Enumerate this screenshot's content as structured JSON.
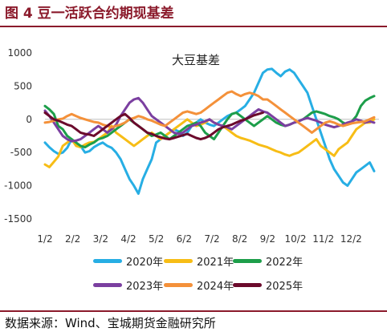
{
  "figure_title": "图 4 豆一活跃合约期现基差",
  "source_note": "数据来源：Wind、宝城期货金融研究所",
  "chart_data": {
    "type": "line",
    "title": "大豆基差",
    "xlabel": "",
    "ylabel": "",
    "ylim": [
      -1500,
      1000
    ],
    "yticks": [
      1000,
      500,
      0,
      -500,
      -1000,
      -1500
    ],
    "x_tick_labels": [
      "1/2",
      "2/2",
      "3/2",
      "4/2",
      "5/2",
      "6/2",
      "7/2",
      "8/2",
      "9/2",
      "10/2",
      "11/2",
      "12/2"
    ],
    "legend_position": "bottom",
    "grid": false,
    "series": [
      {
        "name": "2020年",
        "color": "#27aee4",
        "values": [
          -350,
          -420,
          -480,
          -520,
          -500,
          -430,
          -300,
          -360,
          -400,
          -500,
          -480,
          -420,
          -380,
          -350,
          -400,
          -430,
          -500,
          -600,
          -750,
          -900,
          -1000,
          -1120,
          -900,
          -750,
          -600,
          -350,
          -300,
          -250,
          -200,
          -150,
          -180,
          -250,
          -200,
          -100,
          -50,
          0,
          -50,
          -80,
          -100,
          -50,
          0,
          50,
          80,
          100,
          150,
          200,
          300,
          400,
          550,
          700,
          750,
          760,
          700,
          650,
          720,
          750,
          700,
          600,
          500,
          400,
          200,
          0,
          -200,
          -400,
          -600,
          -750,
          -850,
          -950,
          -1000,
          -900,
          -800,
          -750,
          -700,
          -650,
          -780
        ]
      },
      {
        "name": "2021年",
        "color": "#f7bd16",
        "values": [
          -680,
          -720,
          -640,
          -560,
          -400,
          -350,
          -300,
          -400,
          -420,
          -380,
          -350,
          -340,
          -300,
          -250,
          -200,
          -100,
          -200,
          -250,
          -300,
          -350,
          -400,
          -350,
          -300,
          -250,
          -200,
          -250,
          -300,
          -250,
          -200,
          -150,
          -100,
          -50,
          0,
          -50,
          -100,
          -80,
          -50,
          0,
          -50,
          -80,
          -100,
          -150,
          -200,
          -250,
          -280,
          -300,
          -320,
          -350,
          -380,
          -400,
          -420,
          -450,
          -480,
          -500,
          -530,
          -550,
          -520,
          -500,
          -450,
          -400,
          -350,
          -300,
          -400,
          -450,
          -500,
          -550,
          -450,
          -400,
          -350,
          -250,
          -150,
          -100,
          -50,
          -50,
          0
        ]
      },
      {
        "name": "2022年",
        "color": "#1d9e4a",
        "values": [
          200,
          150,
          80,
          -100,
          -150,
          -250,
          -300,
          -350,
          -400,
          -420,
          -380,
          -350,
          -300,
          -280,
          -250,
          -200,
          -150,
          -100,
          -50,
          0,
          -50,
          -100,
          -150,
          -200,
          -250,
          -230,
          -200,
          -250,
          -300,
          -250,
          -200,
          -150,
          -100,
          -80,
          -50,
          -100,
          -200,
          -250,
          -300,
          -200,
          -100,
          0,
          80,
          100,
          50,
          0,
          -50,
          -100,
          -50,
          0,
          50,
          0,
          -50,
          -80,
          -100,
          -80,
          -50,
          -30,
          0,
          50,
          100,
          120,
          100,
          80,
          50,
          30,
          0,
          -50,
          -80,
          -30,
          50,
          200,
          280,
          320,
          350
        ]
      },
      {
        "name": "2023年",
        "color": "#7b3fa0",
        "values": [
          130,
          50,
          -50,
          -150,
          -250,
          -300,
          -330,
          -320,
          -300,
          -250,
          -200,
          -150,
          -100,
          -150,
          -200,
          -150,
          -80,
          50,
          150,
          250,
          300,
          320,
          250,
          150,
          50,
          0,
          -50,
          -100,
          -150,
          -200,
          -220,
          -200,
          -150,
          -100,
          -80,
          -50,
          -30,
          0,
          -50,
          -80,
          -100,
          -120,
          -150,
          -100,
          -50,
          0,
          50,
          100,
          150,
          120,
          100,
          50,
          0,
          -50,
          -100,
          -80,
          -50,
          -30,
          0,
          20,
          0,
          -20,
          -50,
          -80,
          -100,
          -120,
          -100,
          -80,
          -50,
          -30,
          0,
          -20,
          -50,
          -30,
          -50
        ]
      },
      {
        "name": "2024年",
        "color": "#f4913a",
        "values": [
          -50,
          -40,
          -20,
          0,
          10,
          50,
          80,
          50,
          20,
          0,
          -20,
          -40,
          -50,
          -80,
          -100,
          -120,
          -100,
          -80,
          -50,
          0,
          20,
          50,
          30,
          0,
          -20,
          -50,
          -80,
          -100,
          -50,
          0,
          50,
          100,
          120,
          100,
          80,
          100,
          150,
          200,
          250,
          300,
          350,
          400,
          420,
          380,
          350,
          380,
          400,
          380,
          350,
          300,
          300,
          250,
          200,
          150,
          100,
          50,
          0,
          -50,
          -100,
          -150,
          -200,
          -150,
          -100,
          -50,
          -30,
          -50,
          -80,
          -100,
          -80,
          -60,
          -50,
          -40,
          -30,
          0,
          30
        ]
      },
      {
        "name": "2025年",
        "color": "#6b0a2c",
        "values": [
          100,
          50,
          0,
          -20,
          -50,
          -80,
          -100,
          -150,
          -200,
          -220,
          -230,
          -250,
          -200,
          -150,
          -100,
          -50,
          0,
          50,
          80,
          20,
          -50,
          -100,
          -150,
          -200,
          -220,
          -250,
          -270,
          -290,
          -300,
          -280,
          -260,
          -240,
          -220,
          -250,
          -280,
          -300,
          -280,
          -250,
          -200,
          -150,
          -120,
          -100,
          -80,
          -50,
          -20,
          0,
          30,
          60,
          80,
          100
        ]
      }
    ]
  }
}
